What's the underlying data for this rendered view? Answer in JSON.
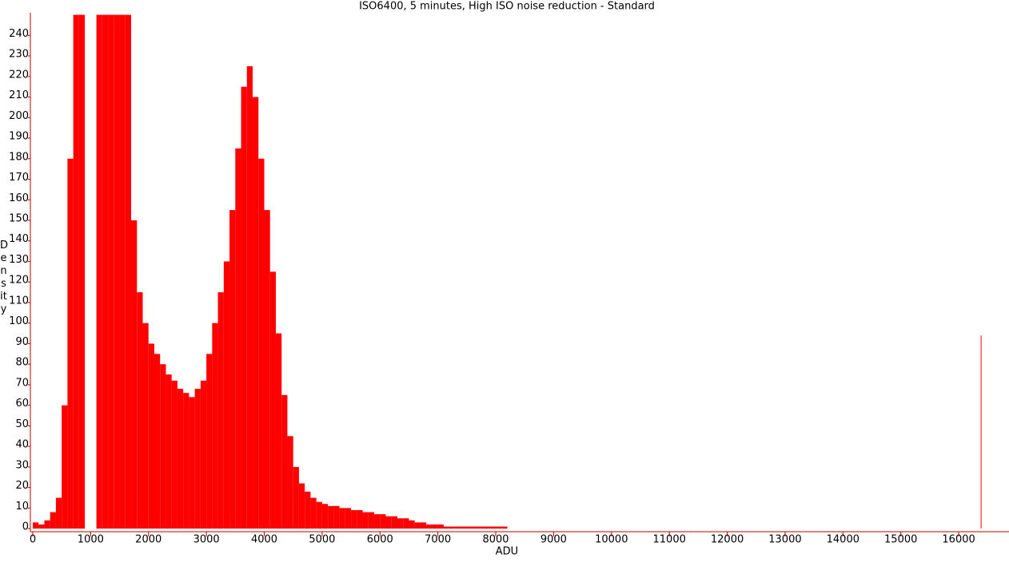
{
  "chart_data": {
    "type": "histogram",
    "title": "ISO6400, 5 minutes, High ISO noise reduction - Standard",
    "x_label": "ADU",
    "y_label": "Density",
    "color": "#ff0000",
    "bins": [
      0,
      100,
      200,
      300,
      400,
      500,
      600,
      700,
      800,
      900,
      1000,
      1100,
      1200,
      1300,
      1400,
      1500,
      1600,
      1700,
      1800,
      1900,
      2000,
      2100,
      2200,
      2300,
      2400,
      2500,
      2600,
      2700,
      2800,
      2900,
      3000,
      3100,
      3200,
      3300,
      3400,
      3500,
      3600,
      3700,
      3800,
      3900,
      4000,
      4100,
      4200,
      4300,
      4400,
      4500,
      4600,
      4700,
      4800,
      4900,
      5000,
      5100,
      5200,
      5300,
      5400,
      5500,
      5600,
      5700,
      5800,
      5900,
      6000,
      6100,
      6200,
      6300,
      6400,
      6500,
      6600,
      6700,
      6800,
      6900,
      7000,
      7100,
      7200,
      7300,
      7400,
      7500,
      7600,
      7700,
      7800,
      7900,
      8000,
      8100,
      8200,
      16380,
      16390
    ],
    "values": [
      3,
      2,
      4,
      8,
      15,
      60,
      180,
      250,
      250,
      0,
      0,
      250,
      250,
      250,
      250,
      250,
      250,
      150,
      115,
      100,
      90,
      85,
      80,
      75,
      72,
      68,
      66,
      64,
      68,
      72,
      85,
      100,
      115,
      130,
      155,
      185,
      215,
      225,
      210,
      180,
      155,
      125,
      95,
      65,
      45,
      30,
      22,
      18,
      15,
      13,
      12,
      11,
      11,
      10,
      10,
      9,
      9,
      8,
      8,
      7,
      7,
      6,
      6,
      5,
      5,
      4,
      3,
      3,
      2,
      2,
      2,
      1,
      1,
      1,
      1,
      1,
      1,
      1,
      1,
      1,
      1,
      1,
      0,
      94
    ],
    "xlim": [
      -41,
      16869
    ],
    "ylim": [
      -1.5,
      251
    ],
    "xticks": [
      0,
      1000,
      2000,
      3000,
      4000,
      5000,
      6000,
      7000,
      8000,
      9000,
      10000,
      11000,
      12000,
      13000,
      14000,
      15000,
      16000
    ],
    "yticks": [
      0,
      10,
      20,
      30,
      40,
      50,
      60,
      70,
      80,
      90,
      100,
      110,
      120,
      130,
      140,
      150,
      160,
      170,
      180,
      190,
      200,
      210,
      220,
      230,
      240
    ]
  }
}
